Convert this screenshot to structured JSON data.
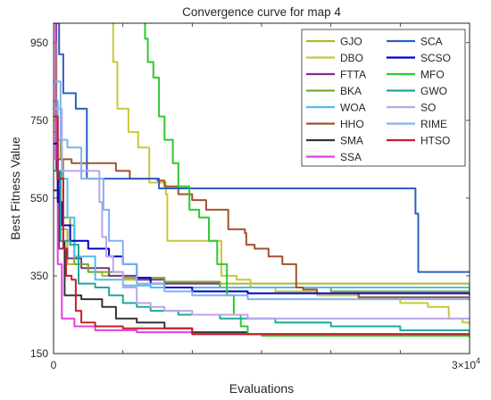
{
  "chart_data": {
    "type": "line",
    "title": "Convergence curve for map 4",
    "xlabel": "Evaluations",
    "ylabel": "Best Fitness Value",
    "xlim": [
      0,
      30000
    ],
    "ylim": [
      150,
      1000
    ],
    "x_exponent_label": "3×10",
    "x_exponent_power": "4",
    "x_tick_first": "0",
    "yticks": [
      150,
      350,
      550,
      750,
      950
    ],
    "grid": false,
    "legend_placement": "top-right",
    "series": [
      {
        "name": "GJO",
        "color": "#B5B52D",
        "points": [
          [
            0,
            720
          ],
          [
            250,
            600
          ],
          [
            500,
            470
          ],
          [
            1000,
            380
          ],
          [
            2500,
            360
          ],
          [
            3500,
            350
          ],
          [
            5000,
            340
          ],
          [
            7000,
            330
          ],
          [
            30000,
            310
          ]
        ]
      },
      {
        "name": "DBO",
        "color": "#C8C83C",
        "points": [
          [
            4200,
            1000
          ],
          [
            4300,
            900
          ],
          [
            4600,
            780
          ],
          [
            5300,
            780
          ],
          [
            5400,
            720
          ],
          [
            6000,
            720
          ],
          [
            6100,
            680
          ],
          [
            6800,
            680
          ],
          [
            6900,
            590
          ],
          [
            8000,
            590
          ],
          [
            8100,
            560
          ],
          [
            8200,
            440
          ],
          [
            12000,
            440
          ],
          [
            12100,
            350
          ],
          [
            13200,
            340
          ],
          [
            14200,
            320
          ],
          [
            16000,
            310
          ],
          [
            19000,
            300
          ],
          [
            22000,
            290
          ],
          [
            25000,
            280
          ],
          [
            27000,
            270
          ],
          [
            28500,
            240
          ],
          [
            29500,
            230
          ],
          [
            30000,
            225
          ]
        ]
      },
      {
        "name": "FTTA",
        "color": "#7E2F8E",
        "points": [
          [
            0,
            1000
          ],
          [
            200,
            620
          ],
          [
            400,
            420
          ],
          [
            1000,
            395
          ],
          [
            2000,
            370
          ],
          [
            4000,
            350
          ],
          [
            6000,
            340
          ],
          [
            8000,
            330
          ],
          [
            12000,
            320
          ],
          [
            30000,
            320
          ]
        ]
      },
      {
        "name": "BKA",
        "color": "#77AC30",
        "points": [
          [
            0,
            950
          ],
          [
            200,
            700
          ],
          [
            500,
            650
          ],
          [
            700,
            500
          ],
          [
            1200,
            480
          ],
          [
            1500,
            380
          ],
          [
            2500,
            360
          ],
          [
            5000,
            345
          ],
          [
            8000,
            335
          ],
          [
            12000,
            320
          ],
          [
            20000,
            310
          ],
          [
            30000,
            300
          ]
        ]
      },
      {
        "name": "WOA",
        "color": "#4DBEEE",
        "points": [
          [
            0,
            800
          ],
          [
            300,
            700
          ],
          [
            600,
            600
          ],
          [
            1000,
            500
          ],
          [
            1500,
            400
          ],
          [
            3000,
            340
          ],
          [
            5000,
            325
          ],
          [
            7000,
            320
          ],
          [
            30000,
            318
          ]
        ]
      },
      {
        "name": "HHO",
        "color": "#A0522D",
        "points": [
          [
            0,
            1000
          ],
          [
            150,
            650
          ],
          [
            1200,
            650
          ],
          [
            1300,
            640
          ],
          [
            3500,
            640
          ],
          [
            4500,
            620
          ],
          [
            5500,
            600
          ],
          [
            7500,
            595
          ],
          [
            8000,
            580
          ],
          [
            9000,
            560
          ],
          [
            10000,
            545
          ],
          [
            11000,
            520
          ],
          [
            12500,
            520
          ],
          [
            12600,
            470
          ],
          [
            13800,
            460
          ],
          [
            13900,
            430
          ],
          [
            14500,
            420
          ],
          [
            15500,
            400
          ],
          [
            16500,
            380
          ],
          [
            17500,
            320
          ],
          [
            18000,
            315
          ],
          [
            19000,
            305
          ],
          [
            22000,
            295
          ],
          [
            30000,
            290
          ]
        ]
      },
      {
        "name": "SMA",
        "color": "#333333",
        "points": [
          [
            0,
            570
          ],
          [
            400,
            440
          ],
          [
            800,
            300
          ],
          [
            2000,
            290
          ],
          [
            3500,
            270
          ],
          [
            4500,
            240
          ],
          [
            6000,
            230
          ],
          [
            8000,
            215
          ],
          [
            10000,
            205
          ],
          [
            14000,
            200
          ],
          [
            30000,
            192
          ]
        ]
      },
      {
        "name": "SSA",
        "color": "#E040E0",
        "points": [
          [
            0,
            1000
          ],
          [
            150,
            650
          ],
          [
            300,
            380
          ],
          [
            600,
            240
          ],
          [
            1500,
            220
          ],
          [
            3000,
            210
          ],
          [
            6000,
            205
          ],
          [
            10000,
            200
          ],
          [
            30000,
            195
          ]
        ]
      },
      {
        "name": "SCA",
        "color": "#2B5FC1",
        "points": [
          [
            0,
            1000
          ],
          [
            400,
            920
          ],
          [
            600,
            920
          ],
          [
            700,
            820
          ],
          [
            1500,
            820
          ],
          [
            1600,
            780
          ],
          [
            2300,
            780
          ],
          [
            2400,
            600
          ],
          [
            7500,
            600
          ],
          [
            7600,
            575
          ],
          [
            26000,
            575
          ],
          [
            26100,
            510
          ],
          [
            26300,
            360
          ],
          [
            30000,
            360
          ]
        ]
      },
      {
        "name": "SCSO",
        "color": "#0000CC",
        "points": [
          [
            0,
            690
          ],
          [
            300,
            540
          ],
          [
            600,
            480
          ],
          [
            1200,
            440
          ],
          [
            2500,
            420
          ],
          [
            4000,
            400
          ],
          [
            5000,
            380
          ],
          [
            6000,
            345
          ],
          [
            7000,
            330
          ],
          [
            8000,
            320
          ],
          [
            10000,
            310
          ],
          [
            14000,
            305
          ],
          [
            30000,
            300
          ]
        ]
      },
      {
        "name": "MFO",
        "color": "#2EC92E",
        "points": [
          [
            6500,
            1000
          ],
          [
            6600,
            960
          ],
          [
            6800,
            900
          ],
          [
            7200,
            860
          ],
          [
            7600,
            760
          ],
          [
            8000,
            700
          ],
          [
            8600,
            640
          ],
          [
            9000,
            580
          ],
          [
            9800,
            520
          ],
          [
            10500,
            500
          ],
          [
            11200,
            440
          ],
          [
            11800,
            380
          ],
          [
            12500,
            300
          ],
          [
            13000,
            250
          ],
          [
            13500,
            220
          ],
          [
            14000,
            200
          ],
          [
            15000,
            196
          ],
          [
            30000,
            195
          ]
        ]
      },
      {
        "name": "GWO",
        "color": "#1FA89B",
        "points": [
          [
            0,
            620
          ],
          [
            500,
            440
          ],
          [
            1200,
            430
          ],
          [
            1800,
            330
          ],
          [
            3000,
            320
          ],
          [
            4000,
            300
          ],
          [
            5000,
            280
          ],
          [
            6000,
            270
          ],
          [
            7000,
            260
          ],
          [
            9000,
            250
          ],
          [
            12000,
            240
          ],
          [
            16000,
            230
          ],
          [
            20000,
            220
          ],
          [
            25000,
            210
          ],
          [
            30000,
            203
          ]
        ]
      },
      {
        "name": "SO",
        "color": "#BCA4E8",
        "points": [
          [
            0,
            780
          ],
          [
            600,
            620
          ],
          [
            3200,
            620
          ],
          [
            3300,
            540
          ],
          [
            3500,
            450
          ],
          [
            3800,
            400
          ],
          [
            4300,
            360
          ],
          [
            5000,
            320
          ],
          [
            6000,
            280
          ],
          [
            7000,
            270
          ],
          [
            8000,
            260
          ],
          [
            10000,
            250
          ],
          [
            14000,
            240
          ],
          [
            20000,
            240
          ],
          [
            30000,
            238
          ]
        ]
      },
      {
        "name": "RIME",
        "color": "#7FB2EE",
        "points": [
          [
            0,
            850
          ],
          [
            500,
            700
          ],
          [
            1000,
            680
          ],
          [
            2000,
            600
          ],
          [
            3500,
            600
          ],
          [
            3600,
            520
          ],
          [
            4000,
            440
          ],
          [
            5000,
            380
          ],
          [
            6000,
            330
          ],
          [
            8000,
            310
          ],
          [
            10000,
            300
          ],
          [
            14000,
            290
          ],
          [
            30000,
            285
          ]
        ]
      },
      {
        "name": "HTSO",
        "color": "#C91C2B",
        "points": [
          [
            0,
            760
          ],
          [
            300,
            600
          ],
          [
            700,
            420
          ],
          [
            900,
            350
          ],
          [
            1300,
            340
          ],
          [
            1600,
            260
          ],
          [
            2000,
            230
          ],
          [
            3000,
            220
          ],
          [
            5000,
            215
          ],
          [
            10000,
            200
          ],
          [
            30000,
            197
          ]
        ]
      }
    ]
  }
}
